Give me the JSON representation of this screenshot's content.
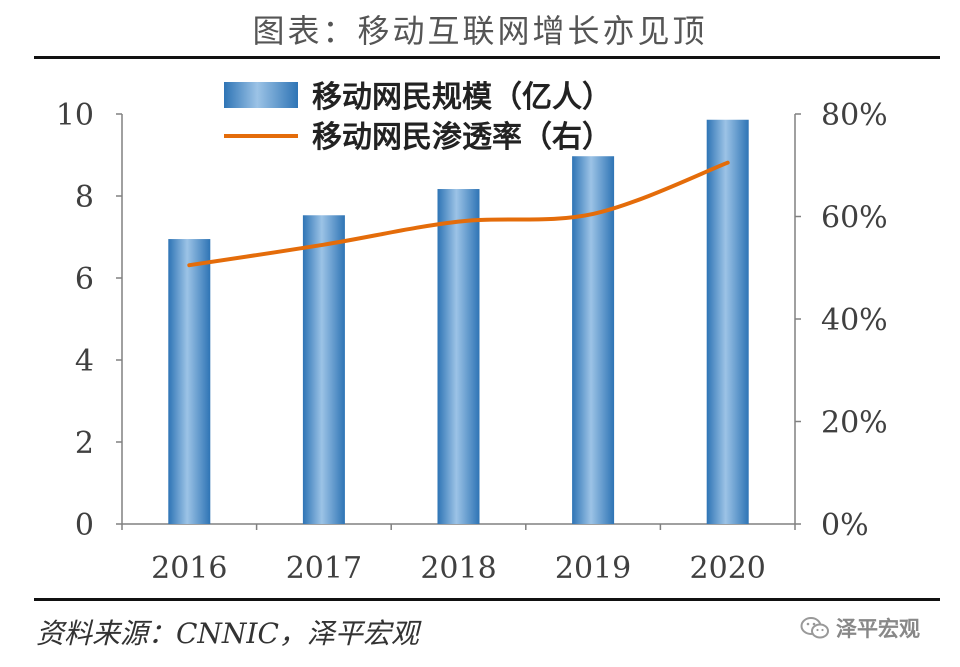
{
  "header": {
    "title": "图表：移动互联网增长亦见顶"
  },
  "footer": {
    "source": "资料来源：CNNIC，泽平宏观",
    "watermark": "泽平宏观",
    "watermark_icon": "wechat-icon"
  },
  "colors": {
    "bar": "#2e74b5",
    "bar_highlight": "#9cc3e6",
    "line": "#e46c0a",
    "axis": "#808080",
    "text": "#404040"
  },
  "chart_data": {
    "type": "bar",
    "title": "",
    "xlabel": "",
    "ylabel": "",
    "categories": [
      "2016",
      "2017",
      "2018",
      "2019",
      "2020"
    ],
    "ylim": [
      0,
      10
    ],
    "y2lim": [
      0,
      0.8
    ],
    "y_ticks": [
      "0",
      "2",
      "4",
      "6",
      "8",
      "10"
    ],
    "y2_ticks": [
      "0%",
      "20%",
      "40%",
      "60%",
      "80%"
    ],
    "grid": false,
    "legend_position": "top",
    "series": [
      {
        "name": "移动网民规模（亿人）",
        "type": "bar",
        "axis": "left",
        "values": [
          6.95,
          7.53,
          8.17,
          8.97,
          9.86
        ]
      },
      {
        "name": "移动网民渗透率（右）",
        "type": "line",
        "axis": "right",
        "values": [
          0.505,
          0.545,
          0.59,
          0.605,
          0.705
        ]
      }
    ]
  }
}
